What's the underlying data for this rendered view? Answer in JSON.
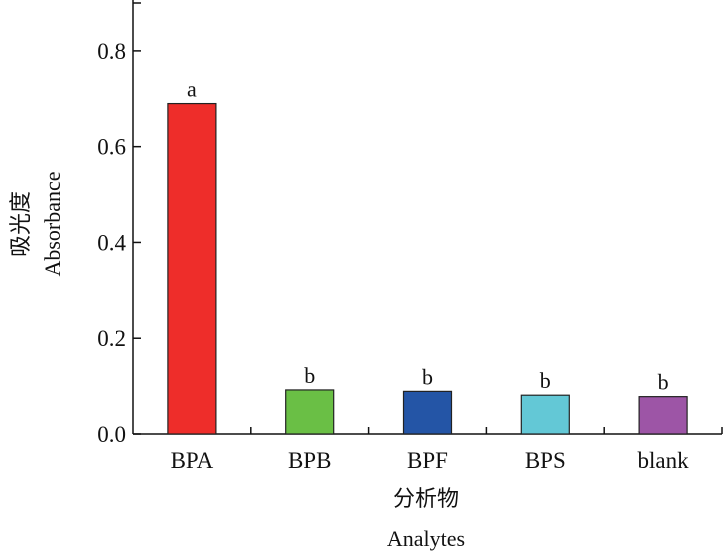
{
  "chart_data": {
    "type": "bar",
    "categories": [
      "BPA",
      "BPB",
      "BPF",
      "BPS",
      "blank"
    ],
    "values": [
      0.69,
      0.092,
      0.089,
      0.081,
      0.078
    ],
    "bar_labels": [
      "a",
      "b",
      "b",
      "b",
      "b"
    ],
    "colors": [
      "#ee2d2a",
      "#6abf45",
      "#2455a6",
      "#63c8d6",
      "#9d55a6"
    ],
    "ylabel_cn": "吸光度",
    "ylabel_en": "Absorbance",
    "xlabel_cn": "分析物",
    "xlabel_en": "Analytes",
    "ylim": [
      0,
      0.9
    ],
    "yticks": [
      0.0,
      0.2,
      0.4,
      0.6,
      0.8
    ],
    "ytick_labels": [
      "0.0",
      "0.2",
      "0.4",
      "0.6",
      "0.8"
    ],
    "grid": false
  }
}
